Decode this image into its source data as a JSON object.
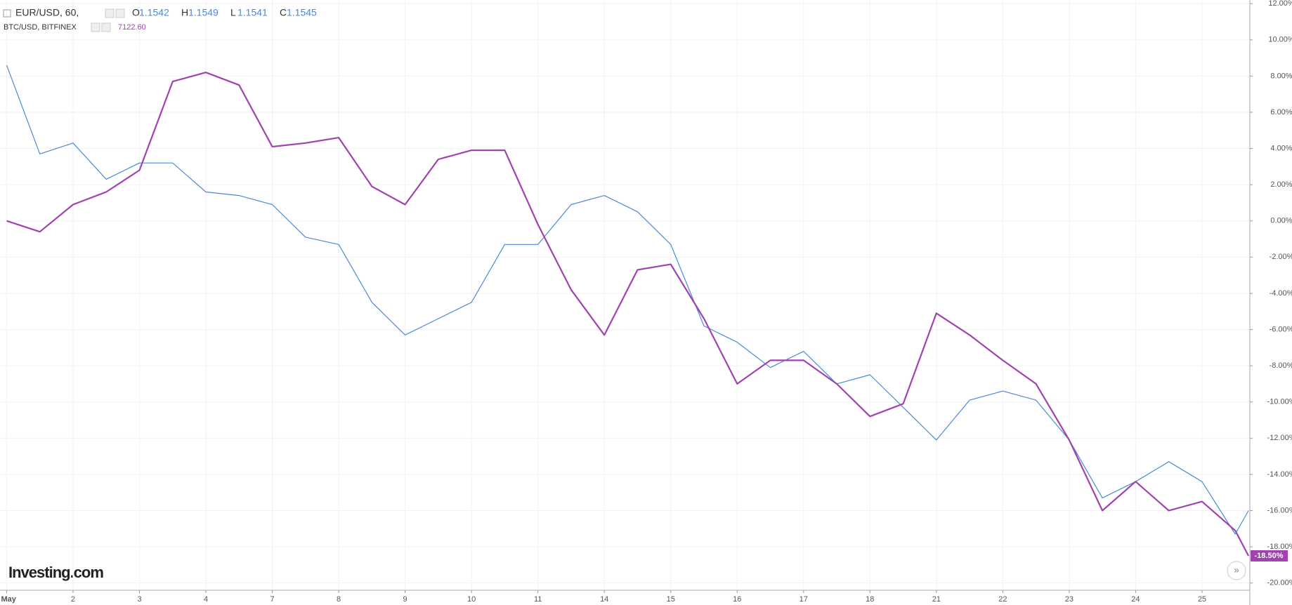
{
  "chart_data": {
    "type": "line",
    "logo": "Investing.com",
    "x": [
      0,
      0.5,
      1,
      1.5,
      2,
      2.5,
      3,
      3.5,
      4,
      4.5,
      5,
      5.5,
      6,
      6.5,
      7,
      7.5,
      8,
      8.5,
      9,
      9.5,
      10,
      10.5,
      11,
      11.5,
      12,
      12.5,
      13,
      13.5,
      14,
      14.5,
      15,
      15.5,
      16,
      16.5,
      17,
      17.5,
      18,
      18.5,
      18.7
    ],
    "xlim": [
      -0.1,
      18.72
    ],
    "xticks": [
      {
        "value": 0,
        "label": "May"
      },
      {
        "value": 1,
        "label": "2"
      },
      {
        "value": 2,
        "label": "3"
      },
      {
        "value": 3,
        "label": "4"
      },
      {
        "value": 4,
        "label": "7"
      },
      {
        "value": 5,
        "label": "8"
      },
      {
        "value": 6,
        "label": "9"
      },
      {
        "value": 7,
        "label": "10"
      },
      {
        "value": 8,
        "label": "11"
      },
      {
        "value": 9,
        "label": "14"
      },
      {
        "value": 10,
        "label": "15"
      },
      {
        "value": 11,
        "label": "16"
      },
      {
        "value": 12,
        "label": "17"
      },
      {
        "value": 13,
        "label": "18"
      },
      {
        "value": 14,
        "label": "21"
      },
      {
        "value": 15,
        "label": "22"
      },
      {
        "value": 16,
        "label": "23"
      },
      {
        "value": 17,
        "label": "24"
      },
      {
        "value": 18,
        "label": "25"
      }
    ],
    "ylim": [
      -20.4,
      12.2
    ],
    "yticks": [
      {
        "value": 12,
        "label": "12.00%"
      },
      {
        "value": 10,
        "label": "10.00%"
      },
      {
        "value": 8,
        "label": "8.00%"
      },
      {
        "value": 6,
        "label": "6.00%"
      },
      {
        "value": 4,
        "label": "4.00%"
      },
      {
        "value": 2,
        "label": "2.00%"
      },
      {
        "value": 0,
        "label": "0.00%"
      },
      {
        "value": -2,
        "label": "-2.00%"
      },
      {
        "value": -4,
        "label": "-4.00%"
      },
      {
        "value": -6,
        "label": "-6.00%"
      },
      {
        "value": -8,
        "label": "-8.00%"
      },
      {
        "value": -10,
        "label": "-10.00%"
      },
      {
        "value": -12,
        "label": "-12.00%"
      },
      {
        "value": -14,
        "label": "-14.00%"
      },
      {
        "value": -16,
        "label": "-16.00%"
      },
      {
        "value": -18,
        "label": "-18.00%"
      },
      {
        "value": -20,
        "label": "-20.00%"
      }
    ],
    "grid": true,
    "series": [
      {
        "name": "EUR/USD, 60,",
        "color": "#4a8ad8",
        "width": 1.2,
        "quote": [
          {
            "key": "O",
            "text": "1.1542"
          },
          {
            "key": "H",
            "text": "1.1549"
          },
          {
            "key": "L",
            "text": "1.1541"
          },
          {
            "key": "C",
            "text": "1.1545"
          }
        ],
        "values": [
          8.6,
          3.7,
          4.3,
          2.3,
          3.2,
          3.2,
          1.6,
          1.4,
          0.9,
          -0.9,
          -1.3,
          -4.5,
          -6.3,
          -5.4,
          -4.5,
          -1.3,
          -1.3,
          0.9,
          1.4,
          0.5,
          -1.3,
          -5.8,
          -6.7,
          -8.1,
          -7.2,
          -9.0,
          -8.5,
          -10.3,
          -12.1,
          -9.9,
          -9.4,
          -9.9,
          -12.1,
          -15.3,
          -14.4,
          -13.3,
          -14.4,
          -17.3,
          -16.0
        ]
      },
      {
        "name": "BTC/USD, BITFINEX",
        "color": "#a042b0",
        "width": 2.2,
        "quote": [
          {
            "key": "",
            "text": "7122.60"
          }
        ],
        "end_label": "-18.50%",
        "values": [
          0,
          -0.6,
          0.9,
          1.6,
          2.8,
          7.7,
          8.2,
          7.5,
          4.1,
          4.3,
          4.6,
          1.9,
          0.9,
          3.4,
          3.9,
          3.9,
          -0.2,
          -3.8,
          -6.3,
          -2.7,
          -2.4,
          -5.4,
          -9.0,
          -7.7,
          -7.7,
          -9.0,
          -10.8,
          -10.1,
          -5.1,
          -6.3,
          -7.7,
          -9.0,
          -12.1,
          -16.0,
          -14.4,
          -16.0,
          -15.5,
          -17.1,
          -18.5
        ]
      }
    ]
  }
}
